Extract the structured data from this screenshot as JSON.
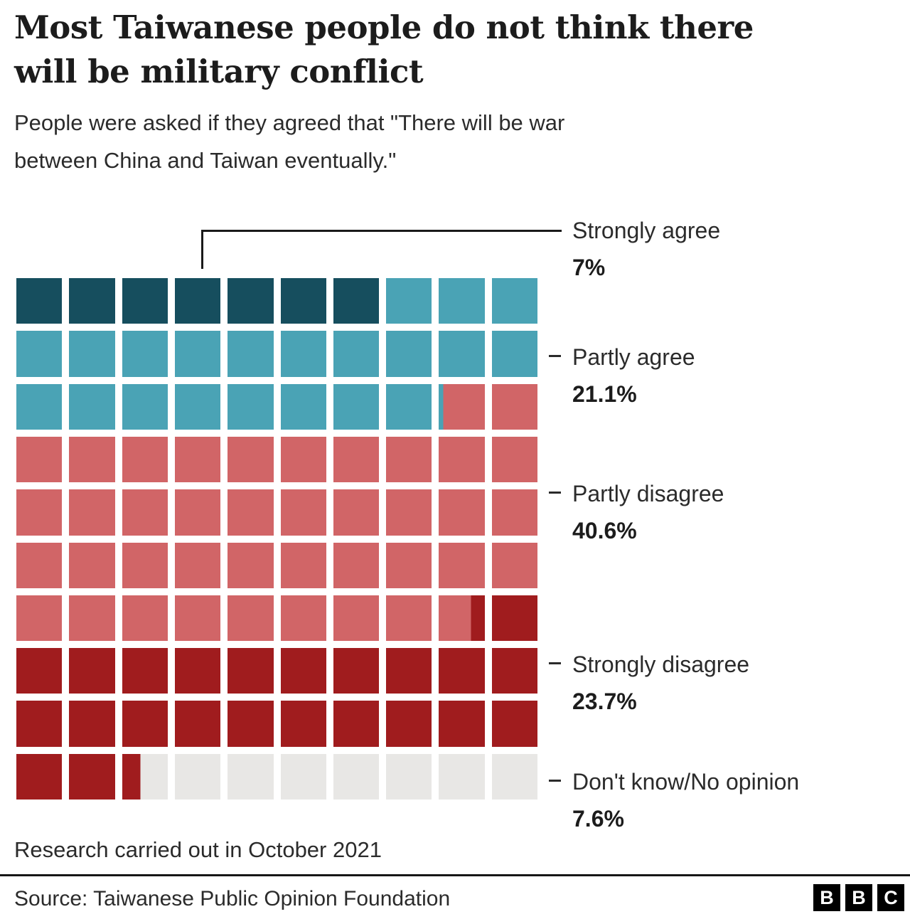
{
  "header": {
    "title_line1": "Most Taiwanese people do not think there",
    "title_line2": "will be military conflict",
    "subtitle_line1": "People were asked if they agreed that \"There will be war",
    "subtitle_line2": "between China and Taiwan eventually.\""
  },
  "chart_data": {
    "type": "waffle",
    "title": "Most Taiwanese people do not think there will be military conflict",
    "subtitle": "People were asked if they agreed that \"There will be war between China and Taiwan eventually.\"",
    "grid": {
      "columns": 10,
      "rows": 10,
      "unit_percent": 1,
      "fill_order": "left-to-right, top-to-bottom"
    },
    "series": [
      {
        "label": "Strongly agree",
        "value": 7,
        "value_label": "7%",
        "color": "#164e5e"
      },
      {
        "label": "Partly agree",
        "value": 21.1,
        "value_label": "21.1%",
        "color": "#4aa3b5"
      },
      {
        "label": "Partly disagree",
        "value": 40.6,
        "value_label": "40.6%",
        "color": "#d16567"
      },
      {
        "label": "Strongly disagree",
        "value": 23.7,
        "value_label": "23.7%",
        "color": "#a01c1e"
      },
      {
        "label": "Don't know/No opinion",
        "value": 7.6,
        "value_label": "7.6%",
        "color": "#e8e7e5"
      }
    ],
    "legend_position": "right",
    "note": "Research carried out in October 2021",
    "source": "Source: Taiwanese Public Opinion Foundation"
  },
  "footer": {
    "note": "Research carried out in October 2021",
    "source": "Source: Taiwanese Public Opinion Foundation",
    "logo_letters": [
      "B",
      "B",
      "C"
    ]
  }
}
